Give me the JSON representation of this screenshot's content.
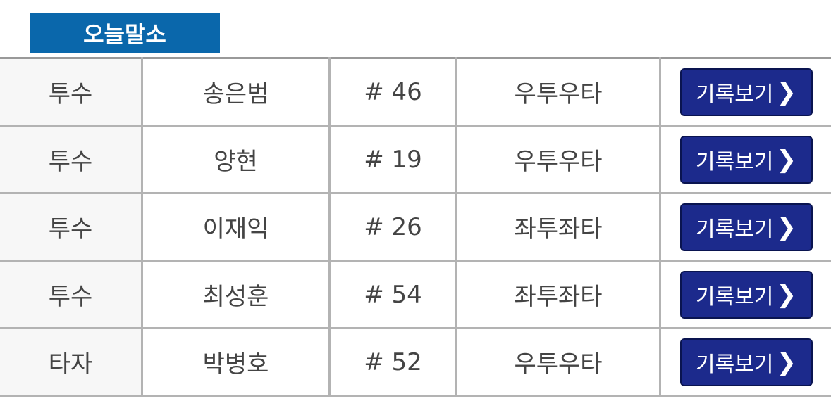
{
  "title": "오늘말소",
  "button_label": "기록보기",
  "colors": {
    "title_bg": "#0a67ab",
    "button_bg": "#1c2a8c"
  },
  "rows": [
    {
      "position": "투수",
      "name": "송은범",
      "number": "# 46",
      "hand": "우투우타"
    },
    {
      "position": "투수",
      "name": "양현",
      "number": "# 19",
      "hand": "우투우타"
    },
    {
      "position": "투수",
      "name": "이재익",
      "number": "# 26",
      "hand": "좌투좌타"
    },
    {
      "position": "투수",
      "name": "최성훈",
      "number": "# 54",
      "hand": "좌투좌타"
    },
    {
      "position": "타자",
      "name": "박병호",
      "number": "# 52",
      "hand": "우투우타"
    }
  ]
}
